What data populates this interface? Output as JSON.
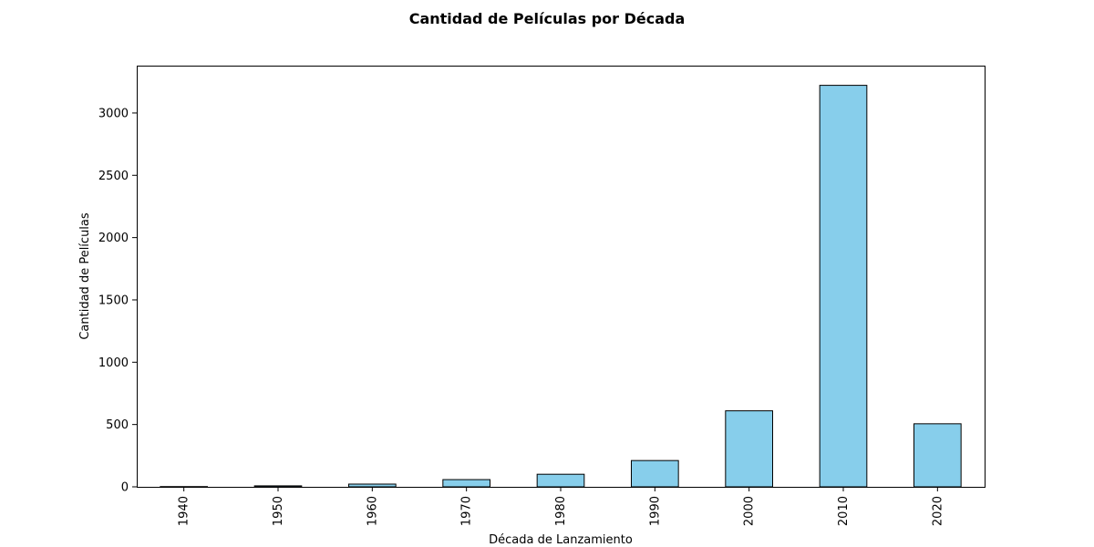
{
  "chart_data": {
    "type": "bar",
    "title": "Cantidad de Películas por Década",
    "xlabel": "Década de Lanzamiento",
    "ylabel": "Cantidad de Películas",
    "categories": [
      "1940",
      "1950",
      "1960",
      "1970",
      "1980",
      "1990",
      "2000",
      "2010",
      "2020"
    ],
    "values": [
      2,
      8,
      22,
      58,
      101,
      211,
      610,
      3222,
      506
    ],
    "ylim": [
      0,
      3380
    ],
    "yticks": [
      0,
      500,
      1000,
      1500,
      2000,
      2500,
      3000
    ],
    "bar_color": "#87CEEB",
    "edge_color": "#000000",
    "grid": false,
    "legend": "none"
  }
}
